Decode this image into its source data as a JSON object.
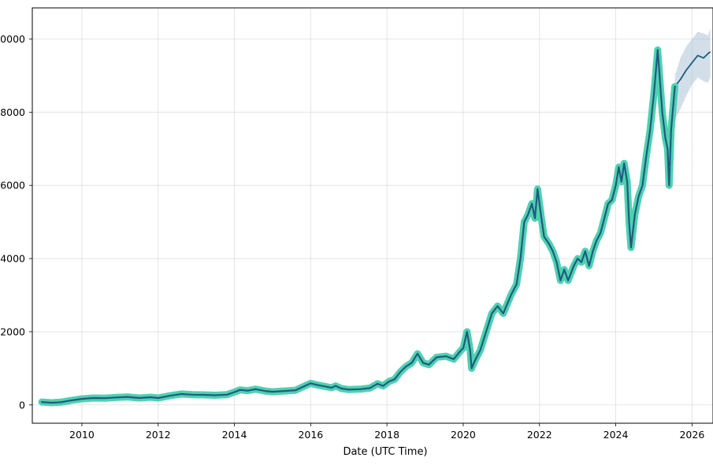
{
  "chart_data": {
    "type": "line",
    "title": "",
    "xlabel": "Date (UTC Time)",
    "ylabel": "",
    "xlim": [
      2008.7,
      2026.55
    ],
    "ylim": [
      -500,
      10850
    ],
    "grid": true,
    "x_ticks": [
      2010,
      2012,
      2014,
      2016,
      2018,
      2020,
      2022,
      2024,
      2026
    ],
    "x_tick_labels": [
      "2010",
      "2012",
      "2014",
      "2016",
      "2018",
      "2020",
      "2022",
      "2024",
      "2026"
    ],
    "y_ticks": [
      0,
      2000,
      4000,
      6000,
      8000,
      10000
    ],
    "y_tick_labels": [
      "0",
      "2000",
      "4000",
      "6000",
      "8000",
      "10000"
    ],
    "colors": {
      "history_band": "#4fd1b0",
      "line": "#1f5b80",
      "forecast_band": "#9db8cc"
    },
    "series": [
      {
        "values": [
          [
            2008.95,
            80
          ],
          [
            2009.2,
            60
          ],
          [
            2009.45,
            75
          ],
          [
            2009.7,
            120
          ],
          [
            2010.0,
            165
          ],
          [
            2010.3,
            190
          ],
          [
            2010.6,
            185
          ],
          [
            2010.9,
            205
          ],
          [
            2011.2,
            220
          ],
          [
            2011.5,
            190
          ],
          [
            2011.8,
            210
          ],
          [
            2012.0,
            190
          ],
          [
            2012.3,
            250
          ],
          [
            2012.6,
            300
          ],
          [
            2012.9,
            280
          ],
          [
            2013.2,
            275
          ],
          [
            2013.5,
            265
          ],
          [
            2013.8,
            280
          ],
          [
            2014.0,
            350
          ],
          [
            2014.15,
            410
          ],
          [
            2014.35,
            390
          ],
          [
            2014.55,
            430
          ],
          [
            2014.8,
            380
          ],
          [
            2015.0,
            360
          ],
          [
            2015.3,
            380
          ],
          [
            2015.6,
            400
          ],
          [
            2015.85,
            520
          ],
          [
            2016.0,
            590
          ],
          [
            2016.2,
            540
          ],
          [
            2016.4,
            500
          ],
          [
            2016.55,
            470
          ],
          [
            2016.65,
            520
          ],
          [
            2016.8,
            450
          ],
          [
            2017.0,
            420
          ],
          [
            2017.3,
            430
          ],
          [
            2017.55,
            460
          ],
          [
            2017.75,
            580
          ],
          [
            2017.9,
            520
          ],
          [
            2018.05,
            640
          ],
          [
            2018.2,
            700
          ],
          [
            2018.35,
            900
          ],
          [
            2018.5,
            1050
          ],
          [
            2018.65,
            1150
          ],
          [
            2018.8,
            1400
          ],
          [
            2018.95,
            1150
          ],
          [
            2019.1,
            1100
          ],
          [
            2019.3,
            1300
          ],
          [
            2019.55,
            1330
          ],
          [
            2019.75,
            1250
          ],
          [
            2019.95,
            1500
          ],
          [
            2020.0,
            1550
          ],
          [
            2020.1,
            2000
          ],
          [
            2020.18,
            1500
          ],
          [
            2020.22,
            1000
          ],
          [
            2020.3,
            1200
          ],
          [
            2020.45,
            1500
          ],
          [
            2020.6,
            2000
          ],
          [
            2020.75,
            2500
          ],
          [
            2020.9,
            2700
          ],
          [
            2021.05,
            2500
          ],
          [
            2021.25,
            3000
          ],
          [
            2021.4,
            3300
          ],
          [
            2021.5,
            4000
          ],
          [
            2021.6,
            5000
          ],
          [
            2021.7,
            5200
          ],
          [
            2021.8,
            5500
          ],
          [
            2021.88,
            5100
          ],
          [
            2021.95,
            5900
          ],
          [
            2022.05,
            5100
          ],
          [
            2022.12,
            4600
          ],
          [
            2022.25,
            4400
          ],
          [
            2022.35,
            4200
          ],
          [
            2022.45,
            3900
          ],
          [
            2022.55,
            3400
          ],
          [
            2022.65,
            3700
          ],
          [
            2022.75,
            3400
          ],
          [
            2022.9,
            3800
          ],
          [
            2023.0,
            4000
          ],
          [
            2023.1,
            3900
          ],
          [
            2023.2,
            4200
          ],
          [
            2023.3,
            3800
          ],
          [
            2023.4,
            4200
          ],
          [
            2023.5,
            4500
          ],
          [
            2023.6,
            4700
          ],
          [
            2023.7,
            5100
          ],
          [
            2023.8,
            5500
          ],
          [
            2023.9,
            5600
          ],
          [
            2024.0,
            6000
          ],
          [
            2024.08,
            6500
          ],
          [
            2024.15,
            6100
          ],
          [
            2024.22,
            6600
          ],
          [
            2024.3,
            6100
          ],
          [
            2024.35,
            5000
          ],
          [
            2024.4,
            4300
          ],
          [
            2024.5,
            5200
          ],
          [
            2024.6,
            5700
          ],
          [
            2024.7,
            6000
          ],
          [
            2024.8,
            6800
          ],
          [
            2024.9,
            7500
          ],
          [
            2025.0,
            8500
          ],
          [
            2025.05,
            9100
          ],
          [
            2025.1,
            9700
          ],
          [
            2025.15,
            9000
          ],
          [
            2025.22,
            8000
          ],
          [
            2025.3,
            7300
          ],
          [
            2025.36,
            7000
          ],
          [
            2025.4,
            6000
          ],
          [
            2025.45,
            7500
          ],
          [
            2025.55,
            8700
          ]
        ]
      },
      {
        "values": [
          [
            2025.55,
            8700
          ],
          [
            2025.7,
            8900
          ],
          [
            2025.85,
            9150
          ],
          [
            2026.0,
            9350
          ],
          [
            2026.15,
            9550
          ],
          [
            2026.3,
            9480
          ],
          [
            2026.42,
            9600
          ],
          [
            2026.48,
            9650
          ]
        ],
        "lower": [
          7800,
          8100,
          8450,
          8750,
          8950,
          8850,
          8800,
          8950
        ],
        "upper": [
          9000,
          9500,
          9800,
          10000,
          10200,
          10150,
          10100,
          10300
        ]
      }
    ]
  }
}
